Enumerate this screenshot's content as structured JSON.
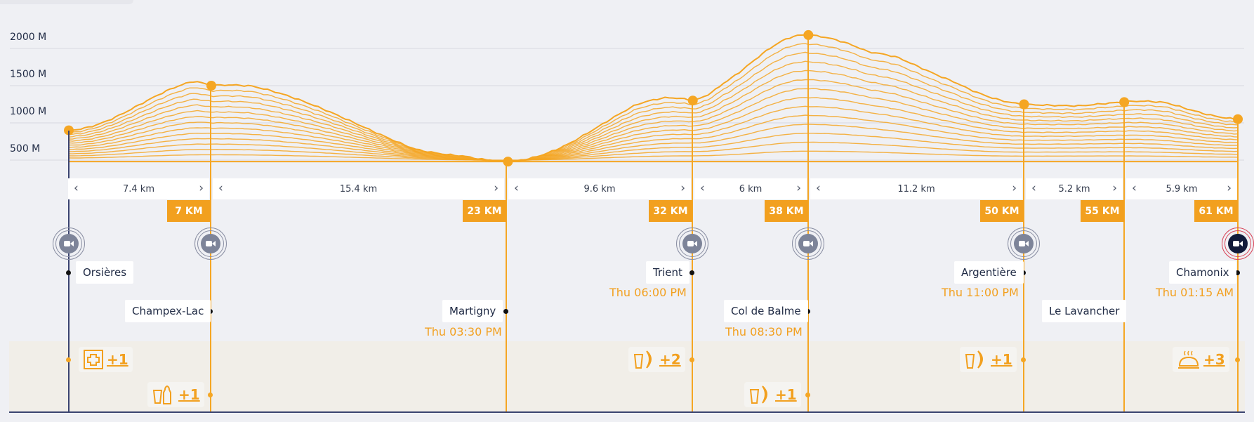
{
  "elevation_labels": [
    "2000 M",
    "1500 M",
    "1000 M",
    "500 M"
  ],
  "segments": [
    "7.4 km",
    "15.4 km",
    "9.6 km",
    "6 km",
    "11.2 km",
    "5.2 km",
    "5.9 km"
  ],
  "km_markers": [
    "7 KM",
    "23 KM",
    "32 KM",
    "38 KM",
    "50 KM",
    "55 KM",
    "61 KM"
  ],
  "places": [
    {
      "name": "Orsières",
      "time": ""
    },
    {
      "name": "Champex-Lac",
      "time": ""
    },
    {
      "name": "Martigny",
      "time": "Thu 03:30 PM"
    },
    {
      "name": "Trient",
      "time": "Thu 06:00 PM"
    },
    {
      "name": "Col de Balme",
      "time": "Thu 08:30 PM"
    },
    {
      "name": "Argentière",
      "time": "Thu 11:00 PM"
    },
    {
      "name": "Le Lavancher",
      "time": ""
    },
    {
      "name": "Chamonix",
      "time": "Thu 01:15 AM"
    }
  ],
  "amenities": [
    {
      "icon": "first-aid-icon",
      "count": "+1"
    },
    {
      "icon": "drink-bottle-icon",
      "count": "+1"
    },
    {
      "icon": "drink-banana-icon",
      "count": "+2"
    },
    {
      "icon": "drink-banana-icon",
      "count": "+1"
    },
    {
      "icon": "drink-banana-icon",
      "count": "+1"
    },
    {
      "icon": "hot-meal-icon",
      "count": "+3"
    }
  ],
  "chart_data": {
    "type": "area",
    "title": "",
    "xlabel": "",
    "ylabel": "",
    "x": [
      0,
      7.4,
      22.8,
      32.4,
      38.4,
      49.6,
      54.8,
      60.7
    ],
    "values": [
      900,
      1500,
      480,
      1300,
      2180,
      1250,
      1280,
      1050
    ],
    "yticks": [
      500,
      1000,
      1500,
      2000
    ],
    "ylim": [
      450,
      2250
    ],
    "unit": "M",
    "color": "#f5a623"
  },
  "colors": {
    "accent": "#f5a623",
    "tag": "#f2a01f",
    "background": "#eff0f4",
    "band": "#f1eee8",
    "active_ring": "#d9475a"
  }
}
